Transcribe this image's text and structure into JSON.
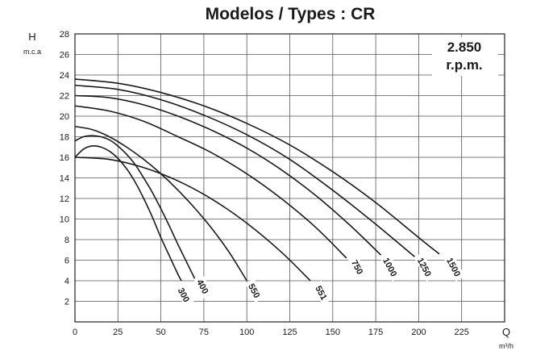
{
  "chart_data": {
    "type": "line",
    "title": "Modelos / Types : CR",
    "ylabel": "H",
    "ylabel_unit": "m.c.a",
    "xlabel": "Q",
    "xlabel_unit": "m³/h",
    "annotation_line1": "2.850",
    "annotation_line2": "r.p.m.",
    "xlim": [
      0,
      250
    ],
    "ylim": [
      0,
      28
    ],
    "x_ticks": [
      "0",
      "25",
      "50",
      "75",
      "100",
      "125",
      "150",
      "175",
      "200",
      "225"
    ],
    "x_tick_values": [
      0,
      25,
      50,
      75,
      100,
      125,
      150,
      175,
      200,
      225
    ],
    "y_ticks": [
      "2",
      "4",
      "6",
      "8",
      "10",
      "12",
      "14",
      "16",
      "18",
      "20",
      "22",
      "24",
      "26",
      "28"
    ],
    "y_tick_values": [
      2,
      4,
      6,
      8,
      10,
      12,
      14,
      16,
      18,
      20,
      22,
      24,
      26,
      28
    ],
    "grid": true,
    "series": [
      {
        "name": "300",
        "label_x": 63,
        "label_y": 2.6,
        "x": [
          0,
          5,
          10,
          15,
          20,
          25,
          30,
          35,
          40,
          45,
          50,
          55,
          60,
          62
        ],
        "y": [
          16,
          16.8,
          17.1,
          17.0,
          16.6,
          15.9,
          14.9,
          13.6,
          12.0,
          10.2,
          8.2,
          6.4,
          4.6,
          4.0
        ]
      },
      {
        "name": "400",
        "label_x": 74,
        "label_y": 3.4,
        "x": [
          0,
          5,
          10,
          15,
          20,
          25,
          30,
          35,
          40,
          45,
          50,
          55,
          60,
          65,
          70
        ],
        "y": [
          17.6,
          18.0,
          18.1,
          18.0,
          17.7,
          17.1,
          16.3,
          15.3,
          14.0,
          12.6,
          11.0,
          9.3,
          7.5,
          5.8,
          4.1
        ]
      },
      {
        "name": "550",
        "label_x": 104,
        "label_y": 3.0,
        "x": [
          0,
          10,
          20,
          30,
          40,
          50,
          60,
          70,
          80,
          90,
          100
        ],
        "y": [
          19.0,
          18.7,
          18.0,
          17.0,
          15.8,
          14.4,
          12.8,
          11.0,
          9.0,
          6.7,
          4.0
        ]
      },
      {
        "name": "551",
        "label_x": 143,
        "label_y": 2.8,
        "x": [
          0,
          20,
          40,
          60,
          80,
          100,
          120,
          137
        ],
        "y": [
          16.0,
          15.8,
          15.0,
          13.7,
          11.9,
          9.6,
          6.8,
          4.0
        ]
      },
      {
        "name": "750",
        "label_x": 164,
        "label_y": 5.3,
        "x": [
          0,
          20,
          40,
          60,
          80,
          100,
          120,
          140,
          158
        ],
        "y": [
          21.0,
          20.5,
          19.5,
          18.0,
          16.4,
          14.4,
          12.0,
          9.2,
          6.2
        ]
      },
      {
        "name": "1000",
        "label_x": 183,
        "label_y": 5.3,
        "x": [
          0,
          20,
          40,
          60,
          80,
          100,
          120,
          140,
          160,
          178
        ],
        "y": [
          22.0,
          21.8,
          21.1,
          20.0,
          18.6,
          16.9,
          14.8,
          12.3,
          9.4,
          6.5
        ]
      },
      {
        "name": "1250",
        "label_x": 203,
        "label_y": 5.3,
        "x": [
          0,
          25,
          50,
          75,
          100,
          125,
          150,
          175,
          200
        ],
        "y": [
          23.0,
          22.6,
          21.6,
          20.1,
          18.2,
          15.8,
          12.8,
          9.5,
          6.0
        ]
      },
      {
        "name": "1500",
        "label_x": 220,
        "label_y": 5.3,
        "x": [
          0,
          25,
          50,
          75,
          100,
          125,
          150,
          175,
          200,
          212
        ],
        "y": [
          23.6,
          23.2,
          22.3,
          21.0,
          19.3,
          17.2,
          14.6,
          11.6,
          8.2,
          6.6
        ]
      }
    ]
  }
}
